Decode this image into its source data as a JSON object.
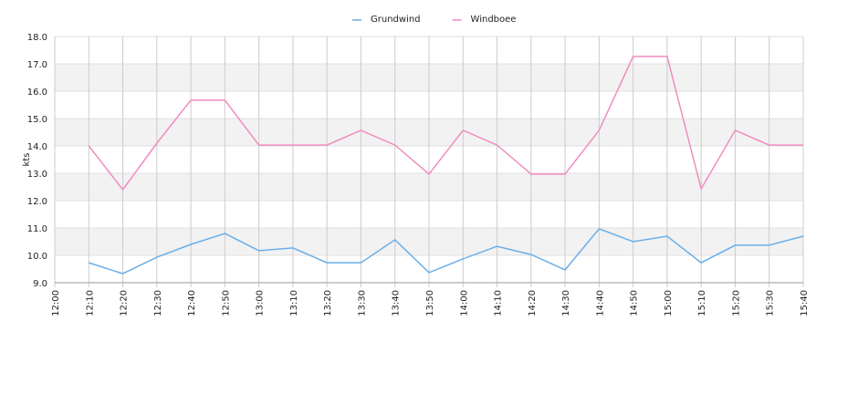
{
  "chart_data": {
    "type": "line",
    "y_label": "kts",
    "x": [
      "12:10",
      "12:20",
      "12:30",
      "12:40",
      "12:50",
      "13:00",
      "13:10",
      "13:20",
      "13:30",
      "13:40",
      "13:50",
      "14:00",
      "14:10",
      "14:20",
      "14:30",
      "14:40",
      "14:50",
      "15:00",
      "15:10",
      "15:20",
      "15:30",
      "15:40"
    ],
    "series": [
      {
        "name": "Grundwind",
        "color": "#6aaee8",
        "values": [
          9.73,
          9.33,
          9.93,
          10.4,
          10.8,
          10.17,
          10.27,
          9.73,
          9.73,
          10.57,
          9.37,
          9.87,
          10.33,
          10.03,
          9.47,
          10.97,
          10.5,
          10.7,
          9.73,
          10.37,
          10.37,
          10.7
        ]
      },
      {
        "name": "Windboee",
        "color": "#f08cc0",
        "values": [
          14.0,
          12.4,
          14.1,
          15.67,
          15.67,
          14.03,
          14.03,
          14.03,
          14.57,
          14.03,
          12.97,
          14.57,
          14.03,
          12.97,
          12.97,
          14.57,
          17.27,
          17.27,
          12.43,
          14.57,
          14.03,
          14.03
        ]
      }
    ],
    "xlim": [
      "12:00",
      "15:40"
    ],
    "xticks": [
      "12:00",
      "12:10",
      "12:20",
      "12:30",
      "12:40",
      "12:50",
      "13:00",
      "13:10",
      "13:20",
      "13:30",
      "13:40",
      "13:50",
      "14:00",
      "14:10",
      "14:20",
      "14:30",
      "14:40",
      "14:50",
      "15:00",
      "15:10",
      "15:20",
      "15:30",
      "15:40"
    ],
    "ylim": [
      9,
      18
    ],
    "yticks": [
      {
        "value": 9,
        "label": "9.0"
      },
      {
        "value": 10,
        "label": "10.0"
      },
      {
        "value": 11,
        "label": "11.0"
      },
      {
        "value": 12,
        "label": "12.0"
      },
      {
        "value": 13,
        "label": "13.0"
      },
      {
        "value": 14,
        "label": "14.0"
      },
      {
        "value": 15,
        "label": "15.0"
      },
      {
        "value": 16,
        "label": "16.0"
      },
      {
        "value": 17,
        "label": "17.0"
      },
      {
        "value": 18,
        "label": "18.0"
      }
    ],
    "grid": true,
    "legend": "top"
  }
}
